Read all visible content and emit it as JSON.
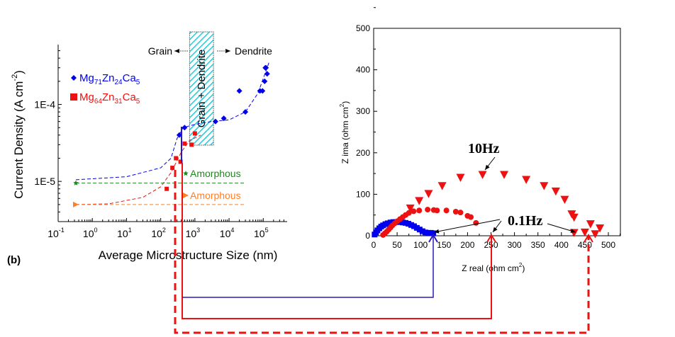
{
  "panel_label": "(b)",
  "colors": {
    "blue": "#0000ee",
    "red": "#ee1111",
    "green": "#1a8a1a",
    "orange": "#ff7f27",
    "hatch": "#22ccdd",
    "navy": "#2a1ab8"
  },
  "chart_data": [
    {
      "type": "scatter",
      "title": "",
      "xlabel": "Average Microstructure Size (nm)",
      "ylabel": "Current Density (A cm-2)",
      "ylabel_main": "Current Density (A cm",
      "ylabel_sup": "-2",
      "ylabel_end": ")",
      "xscale": "log",
      "yscale": "log",
      "xlim": [
        0.1,
        500000
      ],
      "ylim": [
        3e-06,
        0.0006
      ],
      "xticks": [
        {
          "base": "10",
          "exp": "-1",
          "v": 0.1
        },
        {
          "base": "10",
          "exp": "0",
          "v": 1
        },
        {
          "base": "10",
          "exp": "1",
          "v": 10
        },
        {
          "base": "10",
          "exp": "2",
          "v": 100
        },
        {
          "base": "10",
          "exp": "3",
          "v": 1000
        },
        {
          "base": "10",
          "exp": "4",
          "v": 10000
        },
        {
          "base": "10",
          "exp": "5",
          "v": 100000
        }
      ],
      "yticks": [
        {
          "label": "1E-4",
          "v": 0.0001
        },
        {
          "label": "1E-5",
          "v": 1e-05
        }
      ],
      "region": {
        "label": "Grain + Dendrite",
        "x": [
          700,
          3500
        ]
      },
      "grain_label": "Grain",
      "dendrite_label": "Dendrite",
      "legend": {
        "placement": "top-left"
      },
      "series": [
        {
          "name": "Mg71Zn24Ca5",
          "parts": [
            [
              "Mg",
              ""
            ],
            [
              "71",
              "sub"
            ],
            [
              "Zn",
              ""
            ],
            [
              "24",
              "sub"
            ],
            [
              "Ca",
              ""
            ],
            [
              "5",
              "sub"
            ]
          ],
          "marker": "diamond",
          "color": "#0000ee",
          "points": [
            [
              350,
              4e-05
            ],
            [
              500,
              5e-05
            ],
            [
              4000,
              6e-05
            ],
            [
              7000,
              6.6e-05
            ],
            [
              30000,
              8e-05
            ],
            [
              20000,
              0.00015
            ],
            [
              80000,
              0.00015
            ],
            [
              95000,
              0.00015
            ],
            [
              110000,
              0.0002
            ],
            [
              115000,
              0.0003
            ],
            [
              120000,
              0.0003
            ],
            [
              130000,
              0.00025
            ]
          ],
          "fit": [
            [
              0.33,
              1.05e-05
            ],
            [
              10,
              1.15e-05
            ],
            [
              100,
              1.5e-05
            ],
            [
              200,
              2e-05
            ],
            [
              300,
              3.6e-05
            ],
            [
              450,
              5e-05
            ],
            [
              1000,
              5.5e-05
            ],
            [
              3000,
              6e-05
            ],
            [
              10000,
              6.3e-05
            ],
            [
              30000,
              8e-05
            ],
            [
              70000,
              0.00014
            ],
            [
              150000,
              0.00036
            ]
          ]
        },
        {
          "name": "Mg64Zn31Ca5",
          "parts": [
            [
              "Mg",
              ""
            ],
            [
              "64",
              "sub"
            ],
            [
              "Zn",
              ""
            ],
            [
              "31",
              "sub"
            ],
            [
              "Ca",
              ""
            ],
            [
              "5",
              "sub"
            ]
          ],
          "marker": "square",
          "color": "#ee1111",
          "points": [
            [
              150,
              8e-06
            ],
            [
              220,
              1.5e-05
            ],
            [
              280,
              2e-05
            ],
            [
              380,
              1.8e-05
            ],
            [
              500,
              3.1e-05
            ],
            [
              800,
              3e-05
            ],
            [
              1000,
              4.2e-05
            ]
          ],
          "fit": [
            [
              0.33,
              5e-06
            ],
            [
              3,
              5.1e-06
            ],
            [
              30,
              6.2e-06
            ],
            [
              100,
              8.5e-06
            ],
            [
              200,
              1.3e-05
            ],
            [
              400,
              2.4e-05
            ],
            [
              700,
              3.4e-05
            ],
            [
              1500,
              4e-05
            ]
          ]
        },
        {
          "name": "Amorphous",
          "marker": "star",
          "color": "#1a8a1a",
          "points": [
            [
              0.33,
              9.5e-06
            ]
          ],
          "fit": [
            [
              0.33,
              9.5e-06
            ],
            [
              30000,
              9.5e-06
            ]
          ]
        },
        {
          "name": "Amorphous",
          "marker": "triangle-right",
          "color": "#ff7f27",
          "points": [
            [
              0.33,
              5e-06
            ]
          ],
          "fit": [
            [
              0.33,
              5e-06
            ],
            [
              30000,
              5e-06
            ]
          ]
        }
      ]
    },
    {
      "type": "scatter",
      "xlabel": "Z real (ohm cm2)",
      "xlabel_main": "Z real (ohm cm",
      "xlabel_sup": "2",
      "xlabel_end": ")",
      "ylabel": "Z ima (ohm cm2)",
      "ylabel_main": "Z ima (ohm cm",
      "ylabel_sup": "2",
      "ylabel_end": ")",
      "xlim": [
        0,
        525
      ],
      "ylim": [
        0,
        500
      ],
      "xticks": [
        0,
        50,
        100,
        150,
        200,
        250,
        300,
        350,
        400,
        450,
        500
      ],
      "yticks": [
        0,
        100,
        200,
        300,
        400,
        500
      ],
      "annotations": [
        {
          "text": "10Hz"
        },
        {
          "text": "0.1Hz"
        }
      ],
      "series": [
        {
          "name": "Mg71Zn24Ca5",
          "marker": "square",
          "color": "#0000ee",
          "points": [
            [
              2,
              3
            ],
            [
              5,
              8
            ],
            [
              8,
              13
            ],
            [
              12,
              18
            ],
            [
              16,
              22
            ],
            [
              20,
              25
            ],
            [
              25,
              28
            ],
            [
              30,
              30
            ],
            [
              36,
              32
            ],
            [
              42,
              33
            ],
            [
              48,
              33
            ],
            [
              55,
              33
            ],
            [
              62,
              32
            ],
            [
              68,
              31
            ],
            [
              74,
              29
            ],
            [
              80,
              26
            ],
            [
              86,
              23
            ],
            [
              92,
              19
            ],
            [
              98,
              15
            ],
            [
              104,
              11
            ],
            [
              110,
              8
            ],
            [
              116,
              7
            ],
            [
              122,
              7
            ],
            [
              127,
              6
            ]
          ]
        },
        {
          "name": "Mg64Zn31Ca5",
          "marker": "circle",
          "color": "#ee1111",
          "points": [
            [
              20,
              2
            ],
            [
              24,
              6
            ],
            [
              28,
              10
            ],
            [
              32,
              15
            ],
            [
              36,
              20
            ],
            [
              40,
              25
            ],
            [
              45,
              30
            ],
            [
              50,
              35
            ],
            [
              56,
              40
            ],
            [
              62,
              45
            ],
            [
              68,
              50
            ],
            [
              75,
              55
            ],
            [
              85,
              59
            ],
            [
              97,
              61
            ],
            [
              115,
              63
            ],
            [
              128,
              62
            ],
            [
              135,
              61
            ],
            [
              155,
              61
            ],
            [
              175,
              58
            ],
            [
              185,
              56
            ],
            [
              200,
              48
            ],
            [
              207,
              45
            ],
            [
              218,
              31
            ]
          ]
        },
        {
          "name": "Amorphous",
          "marker": "triangle-down",
          "color": "#ee1111",
          "points": [
            [
              78,
              65
            ],
            [
              97,
              83
            ],
            [
              117,
              100
            ],
            [
              146,
              119
            ],
            [
              185,
              139
            ],
            [
              232,
              146
            ],
            [
              278,
              146
            ],
            [
              325,
              134
            ],
            [
              363,
              119
            ],
            [
              388,
              106
            ],
            [
              407,
              86
            ],
            [
              422,
              51
            ],
            [
              427,
              43
            ],
            [
              427,
              6
            ],
            [
              450,
              7
            ],
            [
              462,
              27
            ],
            [
              472,
              3
            ],
            [
              482,
              17
            ]
          ]
        }
      ]
    }
  ]
}
